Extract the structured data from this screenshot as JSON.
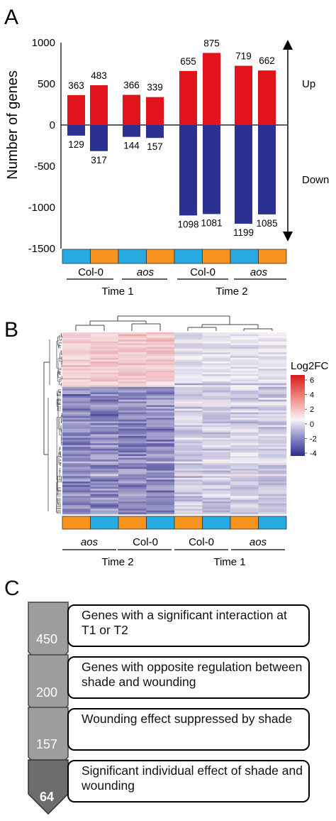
{
  "panels": {
    "a": "A",
    "b": "B",
    "c": "C"
  },
  "chart_data": [
    {
      "type": "bar",
      "ylabel": "Number  of genes",
      "ylim": [
        -1500,
        1000
      ],
      "yticks": [
        1000,
        500,
        0,
        -500,
        -1000,
        -1500
      ],
      "categories": [
        "Col-0 Time 1 (blue)",
        "Col-0 Time 1 (orange)",
        "aos Time 1 (blue)",
        "aos Time 1 (orange)",
        "Col-0 Time 2 (blue)",
        "Col-0 Time 2 (orange)",
        "aos Time 2 (blue)",
        "aos Time 2 (orange)"
      ],
      "series": [
        {
          "name": "Up",
          "color": "#e2141b",
          "values": [
            363,
            483,
            366,
            339,
            655,
            875,
            719,
            662
          ]
        },
        {
          "name": "Down",
          "color": "#2b3192",
          "values": [
            -129,
            -317,
            -144,
            -157,
            -1098,
            -1081,
            -1199,
            -1085
          ]
        }
      ],
      "strip_colors": [
        "#27aae1",
        "#f7941d",
        "#27aae1",
        "#f7941d",
        "#27aae1",
        "#f7941d",
        "#27aae1",
        "#f7941d"
      ],
      "genotype_labels": [
        "Col-0",
        "aos",
        "Col-0",
        "aos"
      ],
      "time_labels": [
        "Time 1",
        "Time 2"
      ],
      "arrow_labels": {
        "up": "Up",
        "down": "Down"
      }
    },
    {
      "type": "heatmap",
      "legend_title": "Log2FC",
      "scale_ticks": [
        6,
        4,
        2,
        0,
        -2,
        -4
      ],
      "scale_colors": {
        "high": "#d7191c",
        "mid": "#f7f7f7",
        "low": "#2c2c8c"
      },
      "column_strip_colors": [
        "#f7941d",
        "#27aae1",
        "#f7941d",
        "#27aae1",
        "#f7941d",
        "#27aae1",
        "#f7941d",
        "#27aae1"
      ],
      "genotype_labels": [
        "aos",
        "Col-0",
        "Col-0",
        "aos"
      ],
      "time_labels": [
        "Time 2",
        "Time 1"
      ]
    }
  ],
  "flow": [
    {
      "count": "450",
      "text": "Genes with a significant interaction at T1 or T2"
    },
    {
      "count": "200",
      "text": "Genes with opposite regulation between shade and wounding"
    },
    {
      "count": "157",
      "text": "Wounding effect suppressed by shade"
    },
    {
      "count": "64",
      "text": "Significant individual effect of shade and wounding"
    }
  ]
}
